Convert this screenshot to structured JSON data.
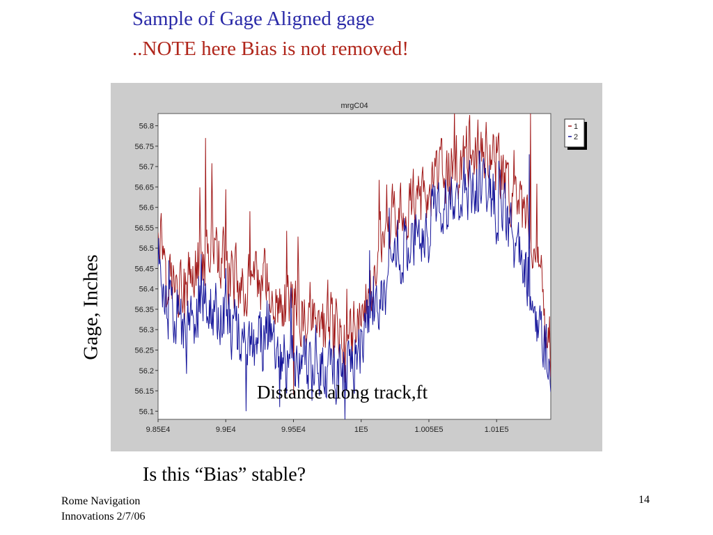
{
  "slide": {
    "title_line1": "Sample of Gage Aligned gage",
    "title_line2": "..NOTE here Bias is not removed!",
    "question": "Is this “Bias” stable?",
    "footer_line1": "Rome Navigation",
    "footer_line2": "Innovations 2/7/06",
    "page_number": "14",
    "title_color_1": "#2a2aa8",
    "title_color_2": "#b0261b"
  },
  "chart_data": {
    "type": "line",
    "title": "mrgC04",
    "xlabel": "Distance along track,ft",
    "ylabel": "Gage, Inches",
    "xlim": [
      98500,
      101400
    ],
    "ylim": [
      56.08,
      56.83
    ],
    "x_ticks": [
      98500,
      99000,
      99500,
      100000,
      100500,
      101000
    ],
    "x_tick_labels": [
      "9.85E4",
      "9.9E4",
      "9.95E4",
      "1E5",
      "1.005E5",
      "1.01E5"
    ],
    "y_ticks": [
      56.1,
      56.15,
      56.2,
      56.25,
      56.3,
      56.35,
      56.4,
      56.45,
      56.5,
      56.55,
      56.6,
      56.65,
      56.7,
      56.75,
      56.8
    ],
    "y_tick_labels": [
      "56.1",
      "56.15",
      "56.2",
      "56.25",
      "56.3",
      "56.35",
      "56.4",
      "56.45",
      "56.5",
      "56.55",
      "56.6",
      "56.65",
      "56.7",
      "56.75",
      "56.8"
    ],
    "legend_position": "top-right",
    "grid": false,
    "x": [
      98500,
      98600,
      98700,
      98800,
      98900,
      99000,
      99100,
      99200,
      99300,
      99400,
      99500,
      99600,
      99700,
      99800,
      99900,
      100000,
      100100,
      100200,
      100300,
      100400,
      100500,
      100600,
      100700,
      100800,
      100900,
      101000,
      101100,
      101200,
      101300,
      101400
    ],
    "series": [
      {
        "name": "1",
        "color": "#a01818",
        "values": [
          56.57,
          56.42,
          56.4,
          56.46,
          56.5,
          56.45,
          56.41,
          56.4,
          56.42,
          56.36,
          56.35,
          56.32,
          56.3,
          56.3,
          56.3,
          56.33,
          56.45,
          56.55,
          56.6,
          56.62,
          56.65,
          56.68,
          56.7,
          56.73,
          56.74,
          56.7,
          56.65,
          56.58,
          56.45,
          56.27
        ],
        "peaks": [
          {
            "x": 98850,
            "y": 56.77
          },
          {
            "x": 100690,
            "y": 56.84
          },
          {
            "x": 101250,
            "y": 56.83
          }
        ],
        "troughs": [
          {
            "x": 99500,
            "y": 56.14
          },
          {
            "x": 99880,
            "y": 56.17
          }
        ]
      },
      {
        "name": "2",
        "color": "#14149a",
        "values": [
          56.48,
          56.32,
          56.3,
          56.35,
          56.35,
          56.33,
          56.29,
          56.26,
          56.28,
          56.24,
          56.22,
          56.2,
          56.2,
          56.2,
          56.22,
          56.26,
          56.36,
          56.43,
          56.5,
          56.53,
          56.56,
          56.6,
          56.63,
          56.65,
          56.65,
          56.6,
          56.55,
          56.45,
          56.32,
          56.2
        ],
        "peaks": [
          {
            "x": 101240,
            "y": 56.73
          },
          {
            "x": 100900,
            "y": 56.71
          }
        ],
        "troughs": [
          {
            "x": 99150,
            "y": 56.1
          },
          {
            "x": 99400,
            "y": 56.11
          },
          {
            "x": 99880,
            "y": 56.08
          }
        ]
      }
    ]
  }
}
